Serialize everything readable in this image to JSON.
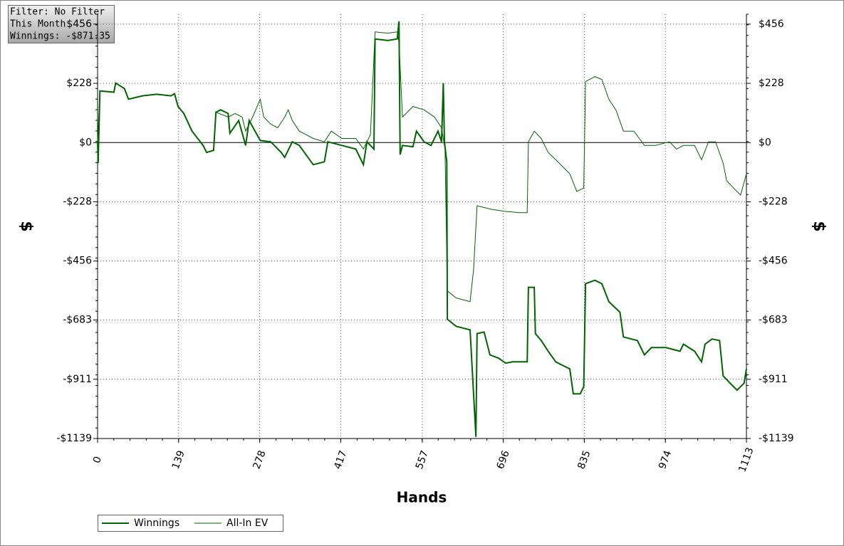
{
  "chart_data": {
    "type": "line",
    "info_box": [
      "Filter: No Filter",
      "This Month",
      "Winnings: -$871.35"
    ],
    "x_label": "Hands",
    "y_label": "$",
    "xlim": [
      0,
      1113
    ],
    "xticks": [
      0,
      139,
      278,
      417,
      557,
      696,
      835,
      974,
      1113
    ],
    "ylim": [
      -1139,
      494
    ],
    "yticks": [
      {
        "value": -1139,
        "label": "-$1139"
      },
      {
        "value": -911,
        "label": "-$911"
      },
      {
        "value": -683,
        "label": "-$683"
      },
      {
        "value": -456,
        "label": "-$456"
      },
      {
        "value": -228,
        "label": "-$228"
      },
      {
        "value": 0,
        "label": "$0"
      },
      {
        "value": 228,
        "label": "$228"
      },
      {
        "value": 456,
        "label": "$456"
      }
    ],
    "grid": true,
    "legend": "bottom-left",
    "series": [
      {
        "name": "Winnings",
        "color": "#006400",
        "line_width": 2,
        "x": [
          0,
          1,
          4,
          28,
          31,
          46,
          53,
          77,
          101,
          126,
          132,
          138,
          148,
          162,
          181,
          187,
          199,
          203,
          211,
          224,
          227,
          242,
          254,
          260,
          279,
          297,
          315,
          321,
          334,
          346,
          370,
          389,
          395,
          419,
          443,
          456,
          462,
          474,
          476,
          498,
          514,
          517,
          519,
          523,
          541,
          547,
          560,
          572,
          584,
          590,
          593,
          595,
          599,
          600,
          615,
          639,
          649,
          651,
          663,
          673,
          688,
          700,
          712,
          737,
          739,
          749,
          751,
          761,
          773,
          786,
          798,
          810,
          816,
          828,
          834,
          837,
          853,
          865,
          877,
          896,
          902,
          926,
          938,
          950,
          975,
          999,
          1005,
          1024,
          1036,
          1042,
          1054,
          1067,
          1073,
          1085,
          1097,
          1109,
          1113
        ],
        "values": [
          0,
          -79,
          199,
          194,
          229,
          208,
          167,
          180,
          186,
          180,
          188,
          139,
          112,
          44,
          -11,
          -38,
          -30,
          117,
          126,
          112,
          36,
          85,
          -11,
          85,
          8,
          3,
          -38,
          -57,
          3,
          -11,
          -85,
          -74,
          3,
          -11,
          -25,
          -85,
          3,
          -25,
          399,
          393,
          399,
          467,
          -46,
          -11,
          -16,
          44,
          3,
          -11,
          44,
          3,
          229,
          3,
          -74,
          -680,
          -707,
          -721,
          -1133,
          -735,
          -729,
          -817,
          -830,
          -849,
          -844,
          -844,
          -557,
          -557,
          -735,
          -762,
          -803,
          -844,
          -858,
          -871,
          -967,
          -967,
          -939,
          -543,
          -530,
          -543,
          -612,
          -653,
          -748,
          -762,
          -817,
          -789,
          -789,
          -803,
          -776,
          -803,
          -844,
          -776,
          -756,
          -762,
          -898,
          -926,
          -953,
          -926,
          -871
        ]
      },
      {
        "name": "All-In EV",
        "color": "#006400",
        "line_width": 1,
        "x": [
          0,
          4,
          28,
          31,
          46,
          53,
          77,
          101,
          126,
          132,
          138,
          148,
          162,
          181,
          187,
          199,
          203,
          224,
          236,
          248,
          254,
          266,
          279,
          285,
          297,
          309,
          321,
          327,
          334,
          346,
          358,
          370,
          389,
          401,
          419,
          443,
          456,
          468,
          476,
          498,
          514,
          517,
          523,
          541,
          560,
          578,
          590,
          596,
          600,
          615,
          639,
          645,
          651,
          676,
          700,
          724,
          737,
          739,
          749,
          761,
          773,
          786,
          810,
          822,
          834,
          837,
          853,
          865,
          877,
          889,
          902,
          920,
          938,
          957,
          981,
          993,
          1005,
          1024,
          1036,
          1048,
          1060,
          1073,
          1079,
          1091,
          1103,
          1113
        ],
        "values": [
          0,
          199,
          194,
          229,
          208,
          167,
          180,
          186,
          180,
          188,
          139,
          112,
          44,
          -11,
          -38,
          -30,
          117,
          98,
          112,
          98,
          44,
          98,
          167,
          98,
          71,
          57,
          98,
          126,
          85,
          44,
          30,
          16,
          3,
          44,
          16,
          16,
          -25,
          30,
          426,
          421,
          426,
          385,
          98,
          139,
          126,
          98,
          57,
          -25,
          -571,
          -598,
          -612,
          -489,
          -243,
          -257,
          -265,
          -270,
          -270,
          3,
          44,
          16,
          -38,
          -66,
          -120,
          -188,
          -175,
          235,
          254,
          243,
          167,
          126,
          44,
          44,
          -11,
          -11,
          3,
          -25,
          -11,
          -11,
          -66,
          3,
          3,
          -79,
          -147,
          -175,
          -202,
          -120
        ]
      }
    ]
  }
}
